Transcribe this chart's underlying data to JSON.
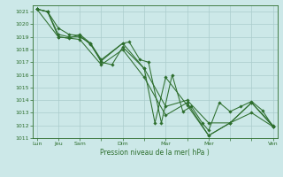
{
  "xlabel": "Pression niveau de la mer( hPa )",
  "bg_color": "#cce8e8",
  "grid_color": "#aacccc",
  "line_color": "#2d6e2d",
  "ylim": [
    1011,
    1021.5
  ],
  "yticks": [
    1011,
    1012,
    1013,
    1014,
    1015,
    1016,
    1017,
    1018,
    1019,
    1020,
    1021
  ],
  "xlim": [
    -0.2,
    11.2
  ],
  "xtick_labels": [
    "Lun",
    "Jeu",
    "Sam",
    "",
    "Dim",
    "",
    "Mar",
    "",
    "Mer",
    "",
    "",
    "Ven"
  ],
  "xtick_positions": [
    0,
    1,
    2,
    3,
    4,
    5,
    6,
    7,
    8,
    9,
    10,
    11
  ],
  "line1_x": [
    0,
    0.5,
    1.0,
    1.5,
    2.0,
    2.5,
    3.0,
    4.0,
    4.3,
    4.8,
    5.2,
    5.8,
    6.3,
    6.8,
    7.2,
    7.7,
    8.0,
    8.5,
    9.0,
    9.5,
    10.0,
    10.5,
    11.0
  ],
  "line1_y": [
    1021.2,
    1021.0,
    1019.7,
    1019.2,
    1019.1,
    1018.4,
    1017.1,
    1018.5,
    1018.6,
    1017.2,
    1017.0,
    1012.2,
    1016.0,
    1013.1,
    1013.5,
    1012.2,
    1011.6,
    1013.8,
    1013.1,
    1013.5,
    1013.9,
    1013.2,
    1011.9
  ],
  "line2_x": [
    0,
    0.5,
    1.0,
    1.5,
    2.0,
    2.5,
    3.0,
    3.5,
    4.0,
    5.0,
    5.5,
    6.0,
    7.0,
    8.0,
    9.0,
    10.0,
    11.0
  ],
  "line2_y": [
    1021.2,
    1021.0,
    1019.2,
    1019.0,
    1019.0,
    1018.5,
    1017.0,
    1016.8,
    1018.2,
    1016.5,
    1012.2,
    1015.8,
    1013.6,
    1011.2,
    1012.2,
    1013.0,
    1011.9
  ],
  "line3_x": [
    0,
    0.5,
    1.0,
    1.5,
    2.0,
    2.5,
    3.0,
    4.0,
    5.0,
    6.0,
    7.0,
    8.0,
    9.0,
    10.0,
    11.0
  ],
  "line3_y": [
    1021.2,
    1021.0,
    1019.0,
    1018.9,
    1019.2,
    1018.5,
    1017.2,
    1018.5,
    1016.5,
    1013.5,
    1014.0,
    1012.2,
    1012.2,
    1013.8,
    1012.0
  ],
  "line4_x": [
    0,
    1.0,
    2.0,
    3.0,
    4.0,
    5.0,
    6.0,
    7.0,
    8.0,
    9.0,
    10.0,
    11.0
  ],
  "line4_y": [
    1021.2,
    1019.0,
    1018.8,
    1016.8,
    1018.0,
    1015.8,
    1012.8,
    1013.8,
    1011.2,
    1012.2,
    1013.8,
    1011.9
  ]
}
